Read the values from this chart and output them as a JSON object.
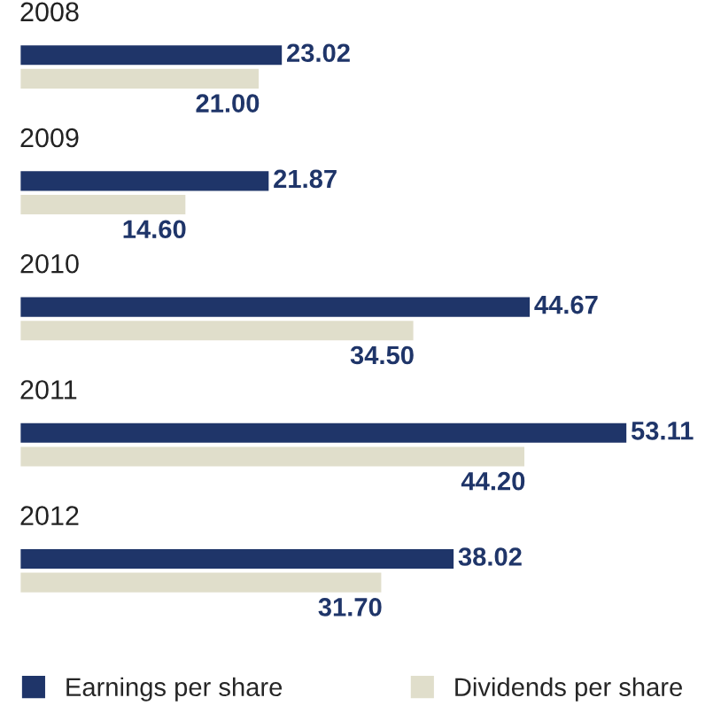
{
  "chart_data": {
    "type": "bar",
    "orientation": "horizontal",
    "categories": [
      "2008",
      "2009",
      "2010",
      "2011",
      "2012"
    ],
    "series": [
      {
        "name": "Earnings per share",
        "color": "#1f3569",
        "values": [
          23.02,
          21.87,
          44.67,
          53.11,
          38.02
        ],
        "value_labels": [
          "23.02",
          "21.87",
          "44.67",
          "53.11",
          "38.02"
        ]
      },
      {
        "name": "Dividends per share",
        "color": "#e0decb",
        "values": [
          21.0,
          14.6,
          34.5,
          44.2,
          31.7
        ],
        "value_labels": [
          "21.00",
          "14.60",
          "34.50",
          "44.20",
          "31.70"
        ]
      }
    ],
    "legend": "bottom"
  }
}
